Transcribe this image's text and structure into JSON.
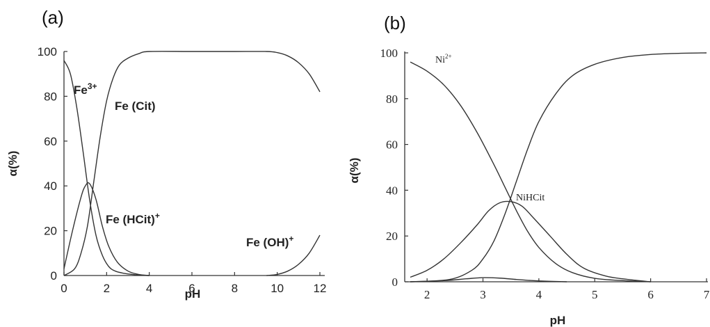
{
  "chart_data": [
    {
      "type": "line",
      "panel_label": "(a)",
      "xlabel": "pH",
      "ylabel": "α(%)",
      "xlim": [
        0,
        12
      ],
      "ylim": [
        0,
        100
      ],
      "xticks": [
        0,
        2,
        4,
        6,
        8,
        10,
        12
      ],
      "yticks": [
        0,
        20,
        40,
        60,
        80,
        100
      ],
      "grid": false,
      "series": [
        {
          "name": "Fe3+",
          "x": [
            0,
            0.3,
            0.6,
            0.9,
            1.2,
            1.5,
            1.8,
            2.1,
            2.4,
            2.8,
            3.2,
            3.5,
            4.0
          ],
          "y": [
            96,
            90,
            75,
            55,
            34,
            18,
            9,
            4,
            2,
            1,
            0.5,
            0.2,
            0
          ]
        },
        {
          "name": "Fe (Cit)",
          "x": [
            0,
            0.5,
            0.8,
            1.1,
            1.4,
            1.7,
            2.0,
            2.3,
            2.6,
            3.0,
            3.5,
            4.0,
            6,
            8,
            9.5,
            10,
            10.5,
            11,
            11.5,
            12
          ],
          "y": [
            0,
            3,
            10,
            22,
            42,
            62,
            78,
            88,
            94,
            97,
            99,
            100,
            100,
            100,
            100,
            99.5,
            98,
            95,
            90,
            82
          ]
        },
        {
          "name": "Fe (HCit)+",
          "x": [
            0,
            0.4,
            0.8,
            1.0,
            1.2,
            1.5,
            1.8,
            2.1,
            2.5,
            3.0,
            3.5,
            4.0
          ],
          "y": [
            3,
            20,
            35,
            40,
            41,
            34,
            22,
            13,
            6,
            2,
            0.5,
            0
          ]
        },
        {
          "name": "Fe (OH)+",
          "x": [
            9.5,
            10,
            10.5,
            11,
            11.5,
            12
          ],
          "y": [
            0,
            0.5,
            2,
            5,
            10,
            18
          ]
        }
      ],
      "annotations": [
        {
          "base": "Fe",
          "sup": "3+"
        },
        {
          "text": "Fe (Cit)"
        },
        {
          "base": "Fe (HCit)",
          "sup": "+"
        },
        {
          "base": "Fe (OH)",
          "sup": "+"
        }
      ]
    },
    {
      "type": "line",
      "panel_label": "(b)",
      "xlabel": "pH",
      "ylabel": "α(%)",
      "xlim": [
        1.6,
        7
      ],
      "ylim": [
        0,
        100
      ],
      "xticks": [
        2,
        3,
        4,
        5,
        6,
        7
      ],
      "xtick_labels": [
        "2",
        "3",
        "4",
        "5",
        "6",
        "7"
      ],
      "yticks": [
        0,
        20,
        40,
        60,
        80,
        100
      ],
      "grid": false,
      "series": [
        {
          "name": "Ni2+",
          "x": [
            1.7,
            2.0,
            2.3,
            2.6,
            2.9,
            3.2,
            3.4,
            3.6,
            3.8,
            4.0,
            4.3,
            4.6,
            5.0,
            5.5,
            6.0
          ],
          "y": [
            96,
            92,
            86,
            77,
            65,
            51,
            41,
            31,
            22,
            15,
            8,
            4,
            1.5,
            0.5,
            0
          ]
        },
        {
          "name": "",
          "x": [
            1.7,
            2.4,
            2.8,
            3.0,
            3.2,
            3.4,
            3.6,
            3.8,
            4.0,
            4.3,
            4.6,
            5.0,
            5.5,
            6.0,
            6.5,
            7.0
          ],
          "y": [
            0,
            1,
            5,
            10,
            18,
            30,
            44,
            58,
            70,
            82,
            90,
            95,
            98,
            99.3,
            99.8,
            100
          ]
        },
        {
          "name": "NiHCit",
          "x": [
            1.7,
            2.0,
            2.3,
            2.6,
            2.9,
            3.1,
            3.3,
            3.5,
            3.7,
            3.9,
            4.2,
            4.5,
            4.8,
            5.2,
            5.6,
            6.0
          ],
          "y": [
            2,
            5,
            10,
            17,
            25,
            31,
            34.5,
            35,
            33,
            28,
            20,
            12,
            6,
            2.5,
            1,
            0
          ]
        },
        {
          "name": "",
          "x": [
            1.7,
            2.3,
            2.7,
            3.0,
            3.3,
            3.6,
            3.9,
            4.2,
            4.5
          ],
          "y": [
            0,
            0.5,
            1.3,
            1.8,
            1.6,
            1.0,
            0.5,
            0.2,
            0
          ]
        }
      ],
      "annotations": [
        {
          "base": "Ni",
          "sup": "2+"
        },
        {
          "text": "NiHCit"
        }
      ]
    }
  ]
}
